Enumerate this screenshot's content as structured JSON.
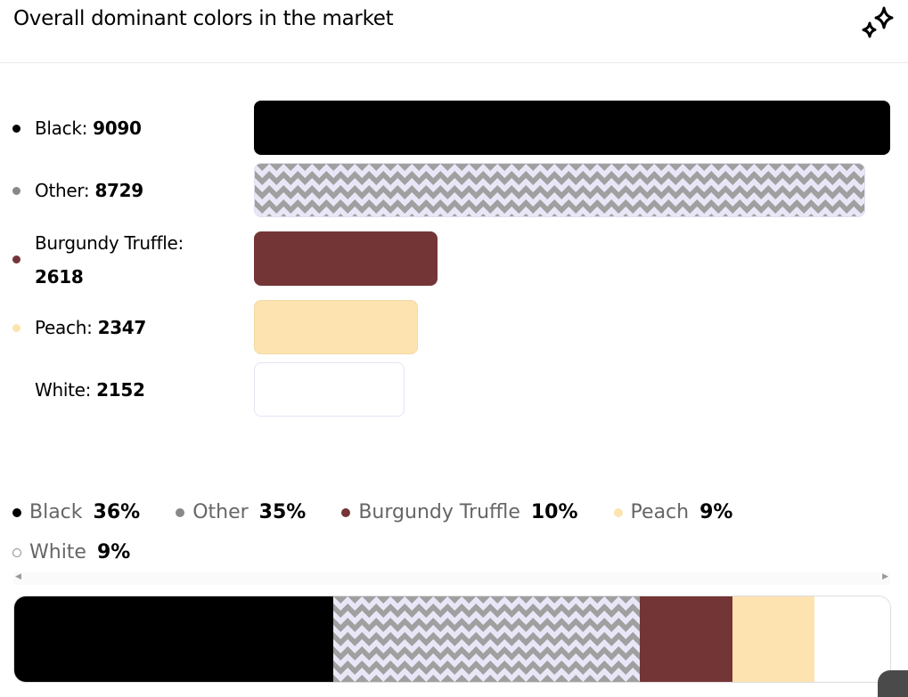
{
  "title": "Overall dominant colors in the market",
  "chart_data": {
    "type": "bar",
    "title": "Overall dominant colors in the market",
    "categories": [
      "Black",
      "Other",
      "Burgundy Truffle",
      "Peach",
      "White"
    ],
    "values": [
      9090,
      8729,
      2618,
      2347,
      2152
    ],
    "percentages": [
      "36%",
      "35%",
      "10%",
      "9%",
      "9%"
    ],
    "colors": [
      "#000000",
      "pattern",
      "#743536",
      "#fde3b0",
      "#ffffff"
    ],
    "dot_colors": [
      "#000000",
      "#888888",
      "#743536",
      "#fde3b0",
      "#ffffff"
    ],
    "labels": [
      "Black: ",
      "Other: ",
      "Burgundy Truffle: ",
      "Peach: ",
      "White: "
    ],
    "legend_names": [
      "Black",
      "Other",
      "Burgundy Truffle",
      "Peach",
      "White"
    ]
  }
}
